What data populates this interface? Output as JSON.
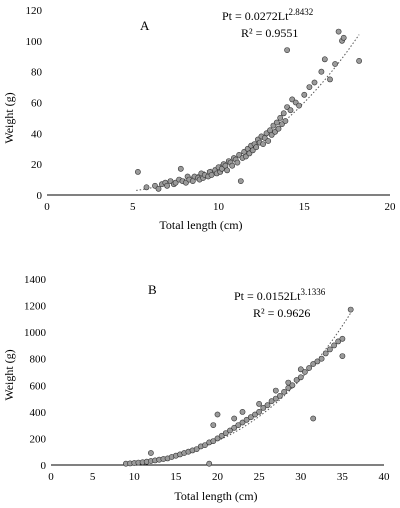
{
  "chart_data": [
    {
      "type": "scatter",
      "panel_label": "A",
      "xlabel": "Total length (cm)",
      "ylabel": "Weight (g)",
      "xlim": [
        0,
        20
      ],
      "ylim": [
        0,
        120
      ],
      "xticks": [
        0,
        5,
        10,
        15,
        20
      ],
      "yticks": [
        0,
        20,
        40,
        60,
        80,
        100,
        120
      ],
      "grid": false,
      "equation": {
        "prefix": "Pt = 0.0272Lt",
        "exponent": "2.8432",
        "r2": "R² = 0.9551"
      },
      "trend": {
        "a": 0.0272,
        "b": 2.8432,
        "x_from": 5.2,
        "x_to": 18.2,
        "style": "dotted"
      },
      "points": [
        [
          5.3,
          15
        ],
        [
          5.8,
          5
        ],
        [
          6.3,
          6
        ],
        [
          6.5,
          4
        ],
        [
          6.7,
          7
        ],
        [
          6.9,
          8
        ],
        [
          7.0,
          6
        ],
        [
          7.2,
          9
        ],
        [
          7.4,
          7
        ],
        [
          7.5,
          8
        ],
        [
          7.7,
          10
        ],
        [
          7.8,
          17
        ],
        [
          7.9,
          9
        ],
        [
          8.1,
          8
        ],
        [
          8.2,
          12
        ],
        [
          8.3,
          10
        ],
        [
          8.5,
          9
        ],
        [
          8.6,
          12
        ],
        [
          8.8,
          11
        ],
        [
          8.9,
          10
        ],
        [
          9.0,
          14
        ],
        [
          9.1,
          11
        ],
        [
          9.2,
          13
        ],
        [
          9.4,
          12
        ],
        [
          9.5,
          15
        ],
        [
          9.6,
          13
        ],
        [
          9.8,
          16
        ],
        [
          9.9,
          14
        ],
        [
          10.0,
          18
        ],
        [
          10.1,
          15
        ],
        [
          10.2,
          17
        ],
        [
          10.3,
          20
        ],
        [
          10.4,
          19
        ],
        [
          10.5,
          16
        ],
        [
          10.6,
          22
        ],
        [
          10.7,
          21
        ],
        [
          10.8,
          19
        ],
        [
          10.9,
          24
        ],
        [
          11.0,
          23
        ],
        [
          11.1,
          21
        ],
        [
          11.2,
          26
        ],
        [
          11.3,
          9
        ],
        [
          11.4,
          24
        ],
        [
          11.5,
          28
        ],
        [
          11.6,
          25
        ],
        [
          11.7,
          30
        ],
        [
          11.8,
          27
        ],
        [
          11.9,
          32
        ],
        [
          12.0,
          29
        ],
        [
          12.1,
          33
        ],
        [
          12.2,
          31
        ],
        [
          12.3,
          36
        ],
        [
          12.4,
          34
        ],
        [
          12.5,
          38
        ],
        [
          12.6,
          33
        ],
        [
          12.7,
          37
        ],
        [
          12.8,
          40
        ],
        [
          12.9,
          35
        ],
        [
          13.0,
          42
        ],
        [
          13.1,
          39
        ],
        [
          13.2,
          45
        ],
        [
          13.3,
          41
        ],
        [
          13.4,
          47
        ],
        [
          13.5,
          43
        ],
        [
          13.6,
          50
        ],
        [
          13.7,
          46
        ],
        [
          13.8,
          53
        ],
        [
          13.9,
          48
        ],
        [
          14.0,
          57
        ],
        [
          14.0,
          94
        ],
        [
          14.2,
          55
        ],
        [
          14.3,
          62
        ],
        [
          14.5,
          60
        ],
        [
          14.7,
          58
        ],
        [
          15.0,
          65
        ],
        [
          15.3,
          70
        ],
        [
          15.6,
          73
        ],
        [
          16.0,
          80
        ],
        [
          16.2,
          88
        ],
        [
          16.5,
          75
        ],
        [
          16.8,
          85
        ],
        [
          17.0,
          106
        ],
        [
          17.2,
          100
        ],
        [
          17.3,
          102
        ],
        [
          18.2,
          87
        ]
      ]
    },
    {
      "type": "scatter",
      "panel_label": "B",
      "xlabel": "Total length (cm)",
      "ylabel": "Weight (g)",
      "xlim": [
        0,
        40
      ],
      "ylim": [
        0,
        1400
      ],
      "xticks": [
        0,
        5,
        10,
        15,
        20,
        25,
        30,
        35,
        40
      ],
      "yticks": [
        0,
        200,
        400,
        600,
        800,
        1000,
        1200,
        1400
      ],
      "grid": false,
      "equation": {
        "prefix": "Pt = 0.0152Lt",
        "exponent": "3.1336",
        "r2": "R² = 0.9626"
      },
      "trend": {
        "a": 0.0152,
        "b": 3.1336,
        "x_from": 9,
        "x_to": 36,
        "style": "dotted"
      },
      "points": [
        [
          9,
          10
        ],
        [
          9.5,
          12
        ],
        [
          10,
          15
        ],
        [
          10.5,
          18
        ],
        [
          11,
          20
        ],
        [
          11.5,
          25
        ],
        [
          12,
          30
        ],
        [
          12,
          90
        ],
        [
          12.5,
          35
        ],
        [
          13,
          40
        ],
        [
          13.5,
          45
        ],
        [
          14,
          50
        ],
        [
          14.5,
          60
        ],
        [
          15,
          70
        ],
        [
          15.5,
          80
        ],
        [
          16,
          90
        ],
        [
          16.5,
          100
        ],
        [
          17,
          110
        ],
        [
          17.5,
          120
        ],
        [
          18,
          140
        ],
        [
          18.5,
          150
        ],
        [
          19,
          170
        ],
        [
          19,
          10
        ],
        [
          19.5,
          180
        ],
        [
          19.5,
          300
        ],
        [
          20,
          200
        ],
        [
          20,
          380
        ],
        [
          20.5,
          220
        ],
        [
          21,
          240
        ],
        [
          21.5,
          260
        ],
        [
          22,
          280
        ],
        [
          22,
          350
        ],
        [
          22.5,
          300
        ],
        [
          23,
          320
        ],
        [
          23,
          400
        ],
        [
          23.5,
          340
        ],
        [
          24,
          360
        ],
        [
          24.5,
          380
        ],
        [
          25,
          400
        ],
        [
          25,
          460
        ],
        [
          25.5,
          430
        ],
        [
          26,
          450
        ],
        [
          26.5,
          480
        ],
        [
          27,
          500
        ],
        [
          27,
          560
        ],
        [
          27.5,
          520
        ],
        [
          28,
          550
        ],
        [
          28.5,
          580
        ],
        [
          28.5,
          620
        ],
        [
          29,
          600
        ],
        [
          29.5,
          640
        ],
        [
          30,
          660
        ],
        [
          30,
          720
        ],
        [
          30.5,
          700
        ],
        [
          31,
          730
        ],
        [
          31.5,
          760
        ],
        [
          31.5,
          350
        ],
        [
          32,
          780
        ],
        [
          32.5,
          800
        ],
        [
          33,
          840
        ],
        [
          33.5,
          870
        ],
        [
          34,
          900
        ],
        [
          34.5,
          930
        ],
        [
          35,
          950
        ],
        [
          35,
          820
        ],
        [
          36,
          1170
        ]
      ]
    }
  ]
}
